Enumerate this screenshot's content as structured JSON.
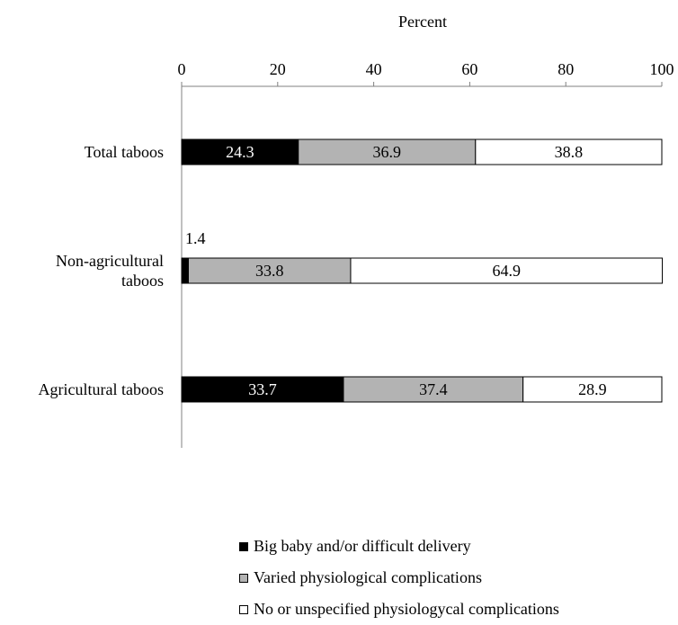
{
  "chart_data": {
    "type": "bar",
    "orientation": "horizontal",
    "stacked": true,
    "xlabel": "Percent",
    "xlim": [
      0,
      100
    ],
    "xticks": [
      0,
      20,
      40,
      60,
      80,
      100
    ],
    "grid": false,
    "legend_position": "bottom",
    "categories": [
      "Total taboos",
      "Non-agricultural taboos",
      "Agricultural taboos"
    ],
    "category_labels": [
      [
        "Total taboos"
      ],
      [
        "Non-agricultural",
        "taboos"
      ],
      [
        "Agricultural taboos"
      ]
    ],
    "series": [
      {
        "name": "Big baby and/or difficult delivery",
        "color": "#000000",
        "label_color": "#ffffff",
        "values": [
          24.3,
          1.4,
          33.7
        ]
      },
      {
        "name": "Varied physiological complications",
        "color": "#b3b3b3",
        "label_color": "#000000",
        "values": [
          36.9,
          33.8,
          37.4
        ]
      },
      {
        "name": "No or unspecified physiologycal complications",
        "color": "#ffffff",
        "label_color": "#000000",
        "values": [
          38.8,
          64.9,
          28.9
        ]
      }
    ]
  }
}
